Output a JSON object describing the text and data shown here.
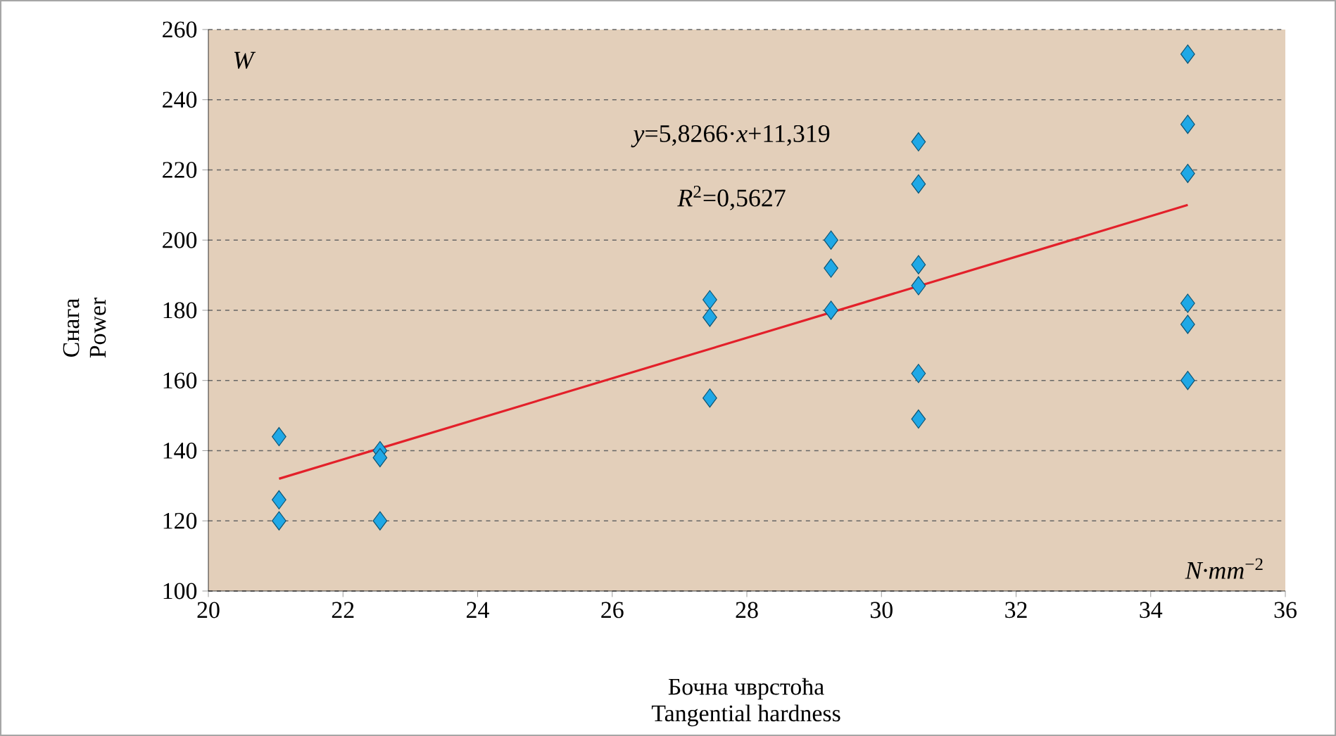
{
  "chart_data": {
    "type": "scatter",
    "xlabel": "Бочна чврстоћа\nTangential hardness",
    "ylabel": "Снага\nPower",
    "xlim": [
      20,
      36
    ],
    "ylim": [
      100,
      260
    ],
    "xticks": [
      20,
      22,
      24,
      26,
      28,
      30,
      32,
      34,
      36
    ],
    "yticks": [
      100,
      120,
      140,
      160,
      180,
      200,
      220,
      240,
      260
    ],
    "grid": "y",
    "annotations": [
      "*y*=5,8266·*x*+11,319",
      "*R*$^{2}$=0,5627",
      "*W*",
      "*N·mm*$^{−2}$"
    ],
    "series": [
      {
        "marker": "diamond",
        "color": "#1fa8e6",
        "x": [
          21.05,
          21.05,
          21.05,
          22.55,
          22.55,
          22.55,
          27.45,
          27.45,
          27.45,
          29.25,
          29.25,
          29.25,
          30.55,
          30.55,
          30.55,
          30.55,
          30.55,
          30.55,
          34.55,
          34.55,
          34.55,
          34.55,
          34.55,
          34.55
        ],
        "values": [
          144,
          126,
          120,
          140,
          138,
          120,
          183,
          178,
          155,
          200,
          192,
          180,
          228,
          216,
          193,
          187,
          162,
          149,
          253,
          233,
          219,
          182,
          176,
          160
        ]
      },
      {
        "type": "line",
        "color": "#e3202a",
        "line_style": "solid",
        "x": [
          21.05,
          34.55
        ],
        "values": [
          132,
          210
        ]
      }
    ]
  }
}
